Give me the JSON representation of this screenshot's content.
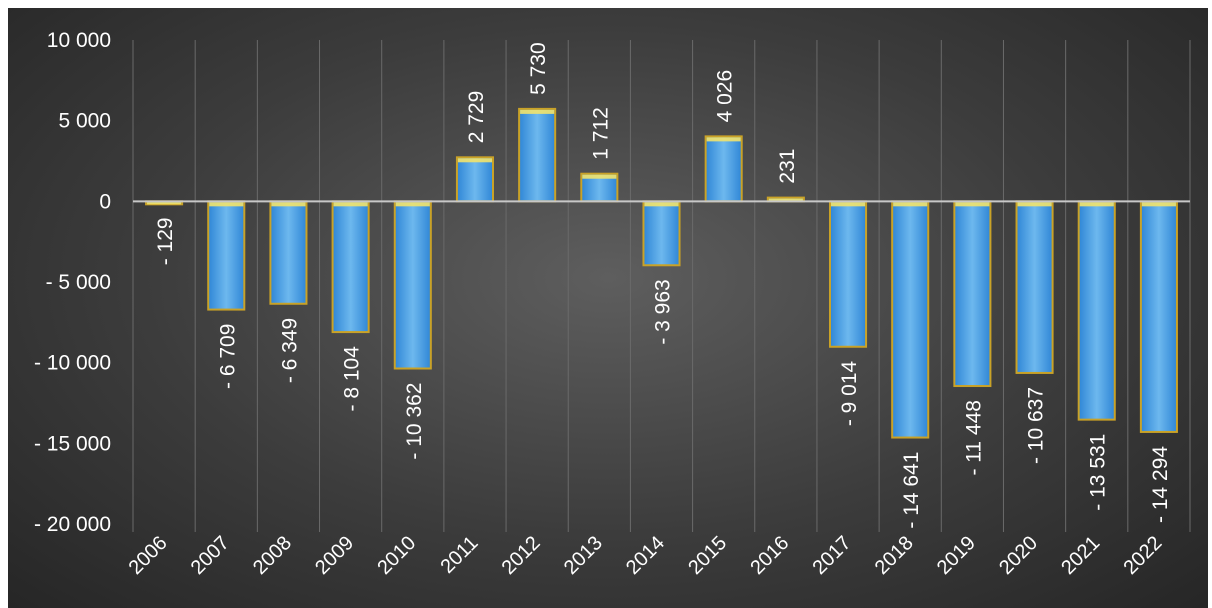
{
  "chart_data": {
    "type": "bar",
    "categories": [
      "2006",
      "2007",
      "2008",
      "2009",
      "2010",
      "2011",
      "2012",
      "2013",
      "2014",
      "2015",
      "2016",
      "2017",
      "2018",
      "2019",
      "2020",
      "2021",
      "2022"
    ],
    "series": [
      {
        "values": [
          -129,
          -6709,
          -6349,
          -8104,
          -10362,
          2729,
          5730,
          1712,
          -3963,
          4026,
          231,
          -9014,
          -14641,
          -11448,
          -10637,
          -13531,
          -14294
        ]
      }
    ],
    "data_labels": [
      "- 129",
      "- 6 709",
      "- 6 349",
      "- 8 104",
      "- 10 362",
      "2 729",
      "5 730",
      "1 712",
      "- 3 963",
      "4 026",
      "231",
      "- 9 014",
      "- 14 641",
      "- 11 448",
      "- 10 637",
      "- 13 531",
      "- 14 294"
    ],
    "ytick_values": [
      10000,
      5000,
      0,
      -5000,
      -10000,
      -15000,
      -20000
    ],
    "ytick_labels": [
      "10 000",
      "5 000",
      "0",
      "- 5 000",
      "- 10 000",
      "- 15 000",
      "- 20 000"
    ],
    "ylim": [
      -20000,
      10000
    ],
    "title": "",
    "xlabel": "",
    "ylabel": "",
    "grid": "vertical",
    "legend": "none",
    "colors": {
      "bar_fill_top": "#7ec3f2",
      "bar_fill_bottom": "#2f86d6",
      "bar_border": "#c9a227",
      "bar_highlight": "#f2e36b",
      "zero_line": "#c8c8c8",
      "grid": "#6a6a6a",
      "text": "#ffffff"
    }
  }
}
